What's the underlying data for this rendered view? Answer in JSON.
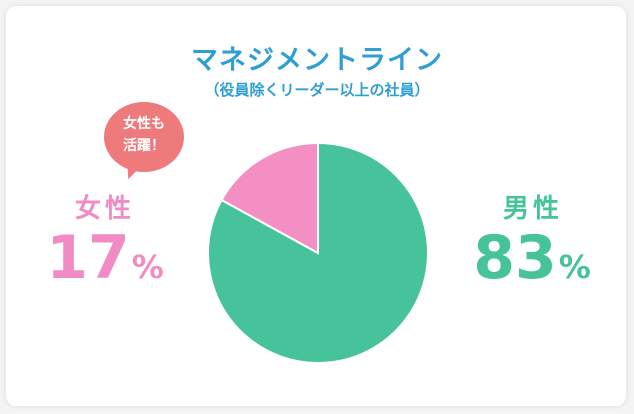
{
  "chart_data": {
    "type": "pie",
    "title": "マネジメントライン",
    "subtitle": "（役員除くリーダー以上の社員）",
    "slices": [
      {
        "label": "男性",
        "value": 83,
        "color": "#46c39a"
      },
      {
        "label": "女性",
        "value": 17,
        "color": "#f48fc3"
      }
    ],
    "unit": "%",
    "annotation": {
      "line1": "女性も",
      "line2": "活躍！",
      "color": "#ef7a7c"
    }
  }
}
